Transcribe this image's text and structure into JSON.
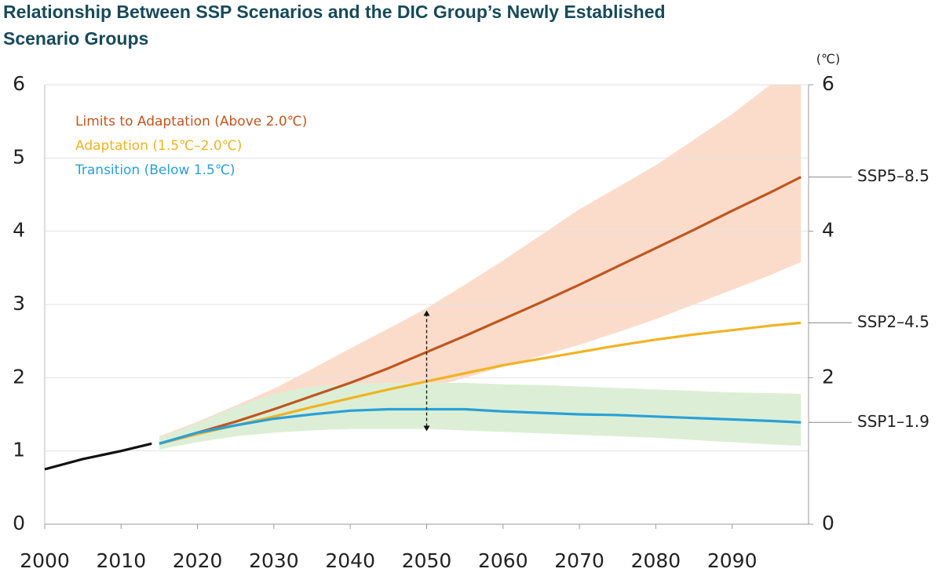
{
  "chart_data": {
    "type": "line",
    "title": "Relationship Between SSP Scenarios and the DIC Group’s Newly Established",
    "subtitle": "Scenario Groups",
    "y2_unit": "(℃)",
    "x": [
      2000,
      2005,
      2010,
      2014,
      2015,
      2020,
      2025,
      2030,
      2035,
      2040,
      2045,
      2050,
      2055,
      2060,
      2065,
      2070,
      2075,
      2080,
      2085,
      2090,
      2095,
      2099
    ],
    "xlim": [
      2000,
      2100
    ],
    "xticks": [
      2000,
      2010,
      2020,
      2030,
      2040,
      2050,
      2060,
      2070,
      2080,
      2090
    ],
    "ylim": [
      0,
      6
    ],
    "yticks": [
      0,
      1,
      2,
      3,
      4,
      5,
      6
    ],
    "y2lim": [
      0,
      6
    ],
    "y2ticks": [
      0,
      2,
      4,
      6
    ],
    "grid": true,
    "bands": [
      {
        "color": "#fbdccb",
        "lower": [
          null,
          null,
          null,
          null,
          1.05,
          1.15,
          1.25,
          1.35,
          1.47,
          1.6,
          1.72,
          1.85,
          2.0,
          2.15,
          2.3,
          2.45,
          2.62,
          2.8,
          3.0,
          3.2,
          3.4,
          3.58
        ],
        "upper": [
          null,
          null,
          null,
          null,
          1.2,
          1.4,
          1.62,
          1.85,
          2.12,
          2.4,
          2.67,
          2.95,
          3.27,
          3.6,
          3.95,
          4.3,
          4.6,
          4.9,
          5.25,
          5.6,
          6.0,
          6.0
        ]
      },
      {
        "color": "#dcefd6",
        "lower": [
          null,
          null,
          null,
          null,
          1.02,
          1.12,
          1.2,
          1.25,
          1.28,
          1.3,
          1.3,
          1.3,
          1.28,
          1.26,
          1.24,
          1.22,
          1.2,
          1.18,
          1.15,
          1.12,
          1.09,
          1.07
        ],
        "upper": [
          null,
          null,
          null,
          null,
          1.18,
          1.38,
          1.6,
          1.78,
          1.88,
          1.92,
          1.93,
          1.93,
          1.93,
          1.91,
          1.9,
          1.88,
          1.86,
          1.84,
          1.82,
          1.8,
          1.79,
          1.78
        ]
      }
    ],
    "series": [
      {
        "color": "#111111",
        "values": [
          0.75,
          0.89,
          1.0,
          1.1,
          null,
          null,
          null,
          null,
          null,
          null,
          null,
          null,
          null,
          null,
          null,
          null,
          null,
          null,
          null,
          null,
          null,
          null
        ]
      },
      {
        "name": "SSP5–8.5",
        "group": "Limits to Adaptation (Above 2.0℃)",
        "color": "#c0561f",
        "axis": "y2",
        "values": [
          null,
          null,
          null,
          null,
          1.1,
          1.25,
          1.4,
          1.57,
          1.75,
          1.93,
          2.13,
          2.35,
          2.57,
          2.8,
          3.03,
          3.27,
          3.52,
          3.77,
          4.02,
          4.28,
          4.53,
          4.74
        ]
      },
      {
        "name": "SSP2–4.5",
        "group": "Adaptation (1.5℃–2.0℃)",
        "color": "#f0b323",
        "axis": "y2",
        "values": [
          null,
          null,
          null,
          null,
          1.1,
          1.23,
          1.35,
          1.47,
          1.6,
          1.72,
          1.84,
          1.95,
          2.06,
          2.17,
          2.26,
          2.35,
          2.44,
          2.52,
          2.59,
          2.65,
          2.71,
          2.75
        ]
      },
      {
        "name": "SSP1–1.9",
        "group": "Transition (Below 1.5℃)",
        "color": "#2aa0d8",
        "axis": "y2",
        "values": [
          null,
          null,
          null,
          null,
          1.1,
          1.25,
          1.35,
          1.44,
          1.5,
          1.55,
          1.57,
          1.57,
          1.57,
          1.54,
          1.52,
          1.5,
          1.49,
          1.47,
          1.45,
          1.43,
          1.41,
          1.39
        ]
      }
    ],
    "range_arrow": {
      "x": 2050,
      "from": 1.27,
      "to": 2.92
    }
  }
}
